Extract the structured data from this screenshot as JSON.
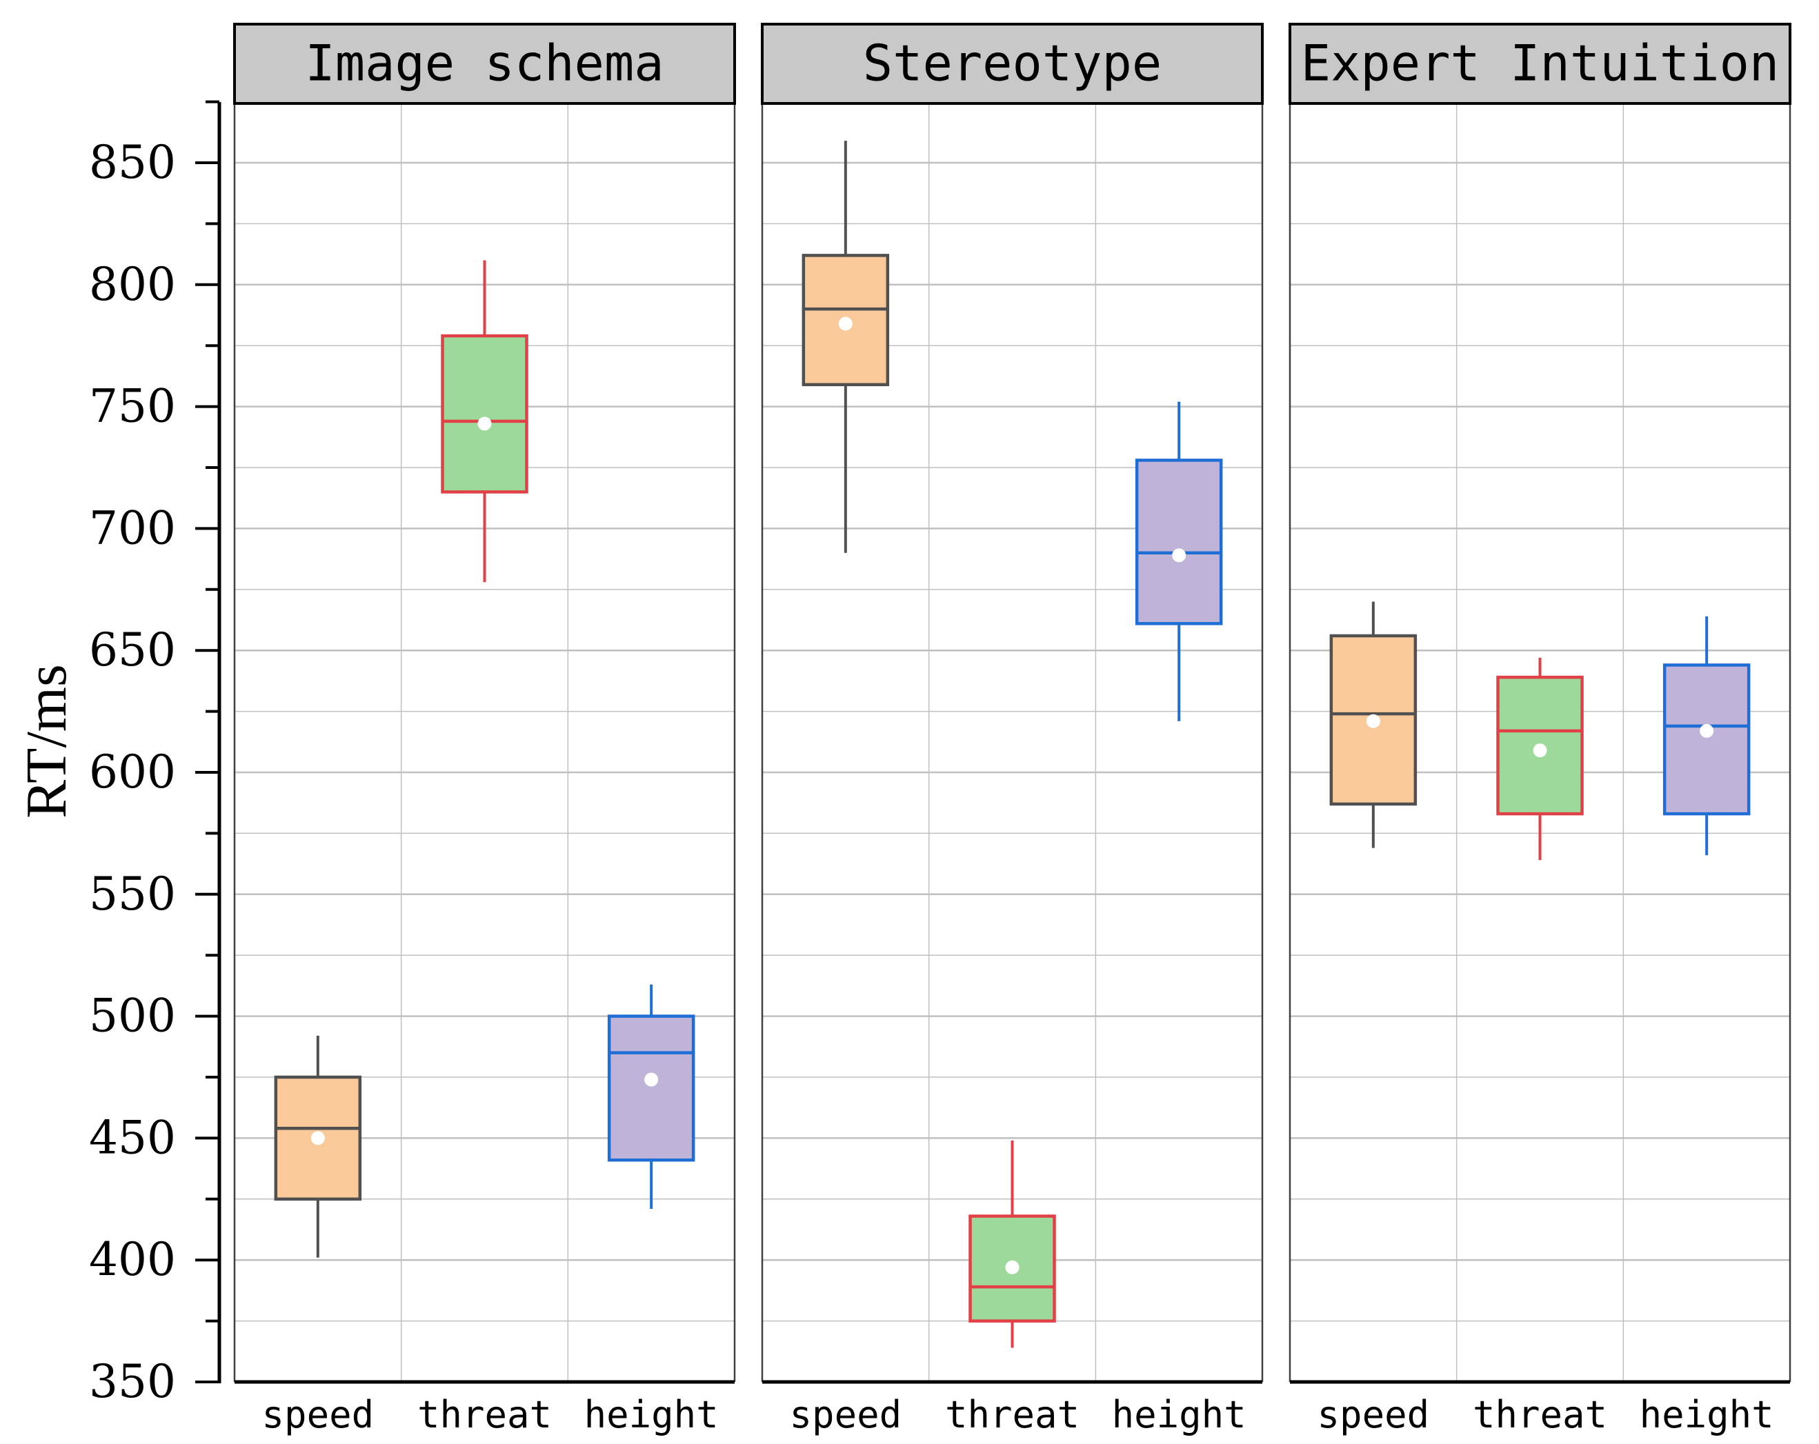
{
  "chart_data": {
    "type": "box",
    "ylabel": "RT/ms",
    "ylim": [
      350,
      875
    ],
    "y_ticks": [
      350,
      400,
      450,
      500,
      550,
      600,
      650,
      700,
      750,
      800,
      850
    ],
    "y_tick_labels": [
      "350",
      "400",
      "450",
      "500",
      "550",
      "600",
      "650",
      "700",
      "750",
      "800",
      "850"
    ],
    "grid": "on",
    "colors": {
      "speed": {
        "fill": "#F9C999",
        "stroke": "#505050"
      },
      "threat": {
        "fill": "#9DD99B",
        "stroke": "#E04046"
      },
      "height": {
        "fill": "#C0B3D8",
        "stroke": "#1F6ED6"
      },
      "mean_marker": "#ffffff",
      "panel_header": "#C8C8C8",
      "grid": "#C0C0C0"
    },
    "panels": [
      {
        "title": "Image schema",
        "boxes": [
          {
            "category": "speed",
            "whisker_low": 401,
            "q1": 425,
            "median": 454,
            "q3": 475,
            "whisker_high": 492,
            "mean": 450
          },
          {
            "category": "threat",
            "whisker_low": 678,
            "q1": 715,
            "median": 744,
            "q3": 779,
            "whisker_high": 810,
            "mean": 743
          },
          {
            "category": "height",
            "whisker_low": 421,
            "q1": 441,
            "median": 485,
            "q3": 500,
            "whisker_high": 513,
            "mean": 474
          }
        ]
      },
      {
        "title": "Stereotype",
        "boxes": [
          {
            "category": "speed",
            "whisker_low": 690,
            "q1": 759,
            "median": 790,
            "q3": 812,
            "whisker_high": 859,
            "mean": 784
          },
          {
            "category": "threat",
            "whisker_low": 364,
            "q1": 375,
            "median": 389,
            "q3": 418,
            "whisker_high": 449,
            "mean": 397
          },
          {
            "category": "height",
            "whisker_low": 621,
            "q1": 661,
            "median": 690,
            "q3": 728,
            "whisker_high": 752,
            "mean": 689
          }
        ]
      },
      {
        "title": "Expert Intuition",
        "boxes": [
          {
            "category": "speed",
            "whisker_low": 569,
            "q1": 587,
            "median": 624,
            "q3": 656,
            "whisker_high": 670,
            "mean": 621
          },
          {
            "category": "threat",
            "whisker_low": 564,
            "q1": 583,
            "median": 617,
            "q3": 639,
            "whisker_high": 647,
            "mean": 609
          },
          {
            "category": "height",
            "whisker_low": 566,
            "q1": 583,
            "median": 619,
            "q3": 644,
            "whisker_high": 664,
            "mean": 617
          }
        ]
      }
    ]
  }
}
